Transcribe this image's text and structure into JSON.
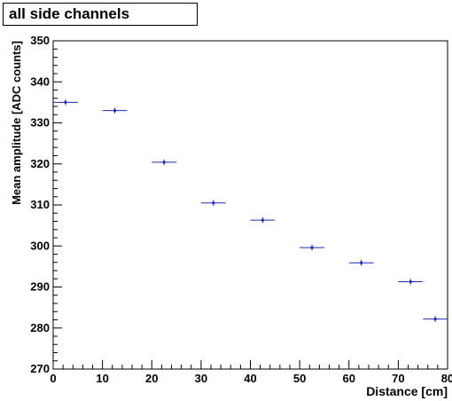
{
  "chart_data": {
    "type": "scatter",
    "title": "all side channels",
    "xlabel": "Distance [cm]",
    "ylabel": "Mean amplitude [ADC counts]",
    "xlim": [
      0,
      80
    ],
    "ylim": [
      270,
      350
    ],
    "x_ticks": [
      "0",
      "10",
      "20",
      "30",
      "40",
      "50",
      "60",
      "70",
      "80"
    ],
    "y_ticks": [
      "270",
      "280",
      "290",
      "300",
      "310",
      "320",
      "330",
      "340",
      "350"
    ],
    "grid": false,
    "marker_color": "#1f2bb5",
    "series": [
      {
        "x": [
          2.5,
          12.5,
          22.5,
          32.5,
          42.5,
          52.5,
          62.5,
          72.5,
          77.5
        ],
        "x_err": [
          2.5,
          2.5,
          2.5,
          2.5,
          2.5,
          2.5,
          2.5,
          2.5,
          2.5
        ],
        "y": [
          335.0,
          333.0,
          320.4,
          310.5,
          306.3,
          299.6,
          295.9,
          291.3,
          282.2
        ],
        "y_err": [
          0.7,
          0.7,
          0.7,
          0.7,
          0.7,
          0.7,
          0.7,
          0.7,
          0.7
        ]
      }
    ]
  }
}
